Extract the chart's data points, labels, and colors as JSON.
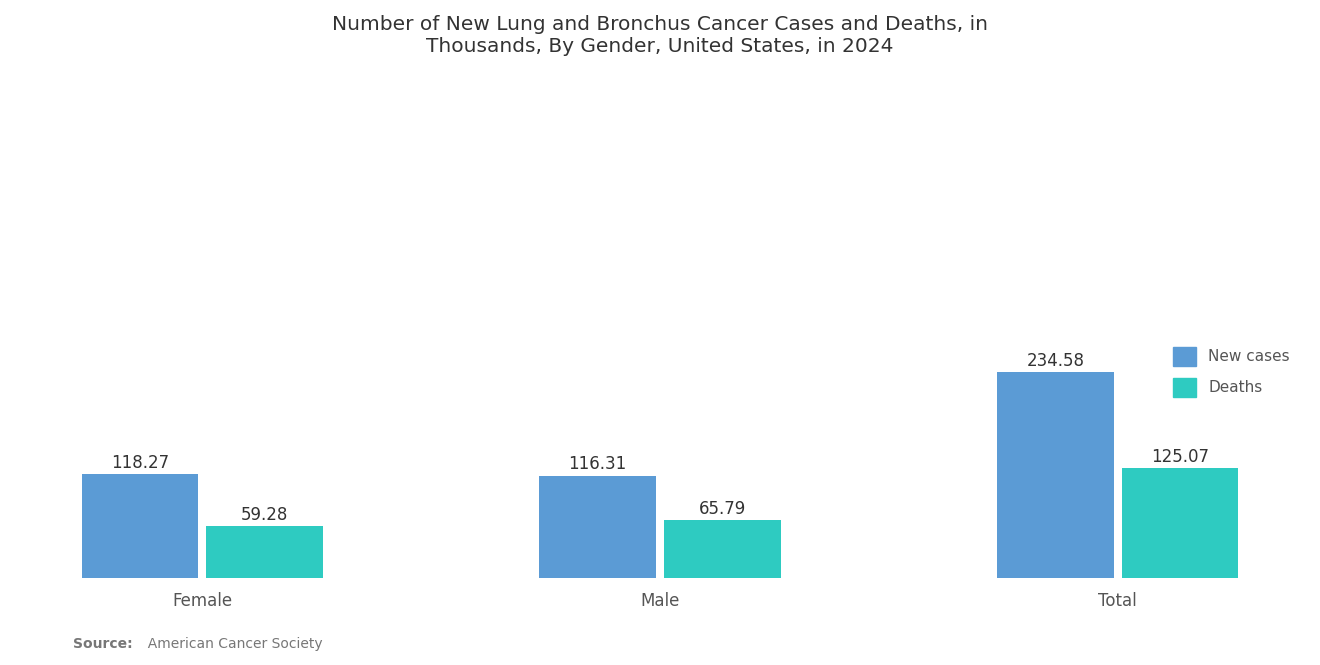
{
  "title": "Number of New Lung and Bronchus Cancer Cases and Deaths, in\nThousands, By Gender, United States, in 2024",
  "categories": [
    "Female",
    "Male",
    "Total"
  ],
  "new_cases": [
    118.27,
    116.31,
    234.58
  ],
  "deaths": [
    59.28,
    65.79,
    125.07
  ],
  "new_cases_color": "#5B9BD5",
  "deaths_color": "#2ECBC1",
  "background_color": "#FFFFFF",
  "title_fontsize": 14.5,
  "label_fontsize": 12,
  "value_fontsize": 12,
  "legend_labels": [
    "New cases",
    "Deaths"
  ],
  "source_bold": "Source:",
  "source_regular": "  American Cancer Society",
  "bar_width": 0.28,
  "ylim_max": 560,
  "group_positions": [
    0.0,
    1.1,
    2.2
  ]
}
